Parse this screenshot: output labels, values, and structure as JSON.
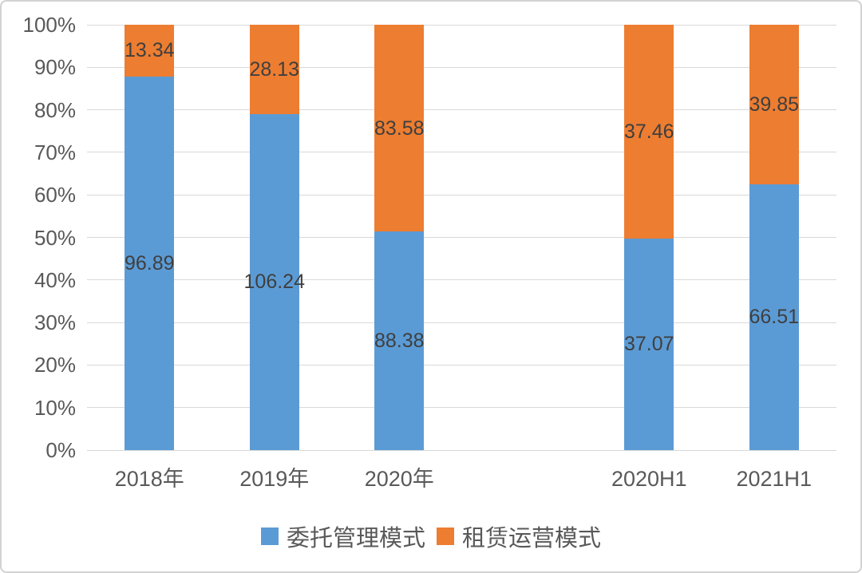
{
  "chart_data": {
    "type": "bar",
    "subtype": "stacked-100-percent",
    "categories": [
      "2018年",
      "2019年",
      "2020年",
      "",
      "2020H1",
      "2021H1"
    ],
    "series": [
      {
        "name": "委托管理模式",
        "color": "#5B9BD5",
        "values": [
          96.89,
          106.24,
          88.38,
          null,
          37.07,
          66.51
        ]
      },
      {
        "name": "租赁运营模式",
        "color": "#ED7D31",
        "values": [
          13.34,
          28.13,
          83.58,
          null,
          37.46,
          39.85
        ]
      }
    ],
    "y_axis": {
      "min": 0,
      "max": 100,
      "tick_step": 10,
      "tick_labels": [
        "0%",
        "10%",
        "20%",
        "30%",
        "40%",
        "50%",
        "60%",
        "70%",
        "80%",
        "90%",
        "100%"
      ]
    },
    "xlabel": "",
    "ylabel": "",
    "title": "",
    "grid": true,
    "value_labels_shown": true,
    "legend_position": "bottom"
  },
  "colors": {
    "gridline": "#d9d9d9",
    "axis_text": "#595959",
    "data_label": "#3f3f3f",
    "frame_border": "#d2d2d2",
    "background": "#ffffff"
  }
}
